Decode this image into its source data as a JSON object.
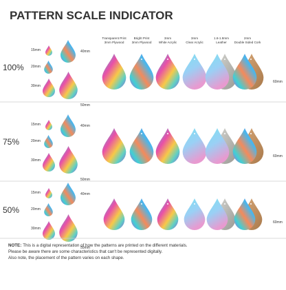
{
  "title": "PATTERN SCALE INDICATOR",
  "materials": [
    {
      "line1": "Transparent Print",
      "line2": "3mm Plywood"
    },
    {
      "line1": "Bright Print",
      "line2": "3mm Plywood"
    },
    {
      "line1": "3mm",
      "line2": "White Acrylic"
    },
    {
      "line1": "3mm",
      "line2": "Clear Acrylic"
    },
    {
      "line1": "1.6-1.8mm",
      "line2": "Leather"
    },
    {
      "line1": "2mm",
      "line2": "Double Sided Cork"
    }
  ],
  "rows": [
    {
      "scale": "100%",
      "sizes": [
        "15mm",
        "20mm",
        "30mm",
        "40mm",
        "50mm"
      ],
      "height_label": "60mm"
    },
    {
      "scale": "75%",
      "sizes": [
        "15mm",
        "20mm",
        "30mm",
        "40mm",
        "50mm"
      ],
      "height_label": "60mm"
    },
    {
      "scale": "50%",
      "sizes": [
        "15mm",
        "20mm",
        "30mm",
        "40mm",
        "50mm"
      ],
      "height_label": "60mm"
    }
  ],
  "note": {
    "label": "NOTE:",
    "lines": [
      "This is a digital representation of how the patterns are printed on the different materials.",
      "Please be aware there are some characteristics that can't be represented digitally.",
      "Also note, the placement of the pattern varies on each shape."
    ]
  }
}
